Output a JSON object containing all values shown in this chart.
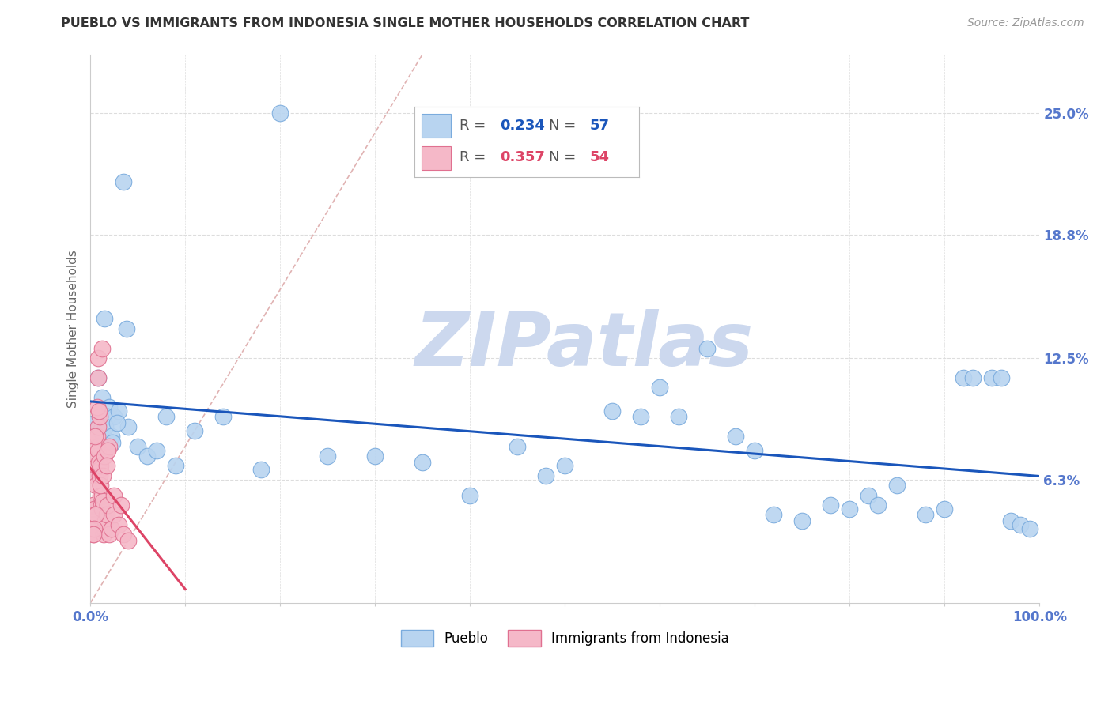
{
  "title": "PUEBLO VS IMMIGRANTS FROM INDONESIA SINGLE MOTHER HOUSEHOLDS CORRELATION CHART",
  "source": "Source: ZipAtlas.com",
  "ylabel": "Single Mother Households",
  "watermark": "ZIPatlas",
  "xlim": [
    0,
    100
  ],
  "ylim": [
    0,
    28
  ],
  "ytick_vals": [
    6.3,
    12.5,
    18.8,
    25.0
  ],
  "ytick_labels": [
    "6.3%",
    "12.5%",
    "18.8%",
    "25.0%"
  ],
  "pueblo_color": "#b8d4f0",
  "pueblo_edge": "#7aabdd",
  "indonesia_color": "#f5b8c8",
  "indonesia_edge": "#e07090",
  "pueblo_line_color": "#1a56bb",
  "indonesia_line_color": "#dd4466",
  "ref_line_color": "#ddaaaa",
  "grid_color": "#dddddd",
  "bg_color": "#ffffff",
  "title_color": "#333333",
  "watermark_color": "#ccd8ee",
  "tick_color": "#5577cc",
  "pueblo_scatter_x": [
    3.5,
    1.5,
    0.8,
    1.2,
    2.0,
    1.8,
    2.5,
    3.0,
    4.0,
    0.5,
    0.9,
    1.1,
    1.4,
    1.6,
    2.2,
    2.8,
    5.0,
    6.0,
    7.0,
    9.0,
    11.0,
    14.0,
    18.0,
    25.0,
    30.0,
    35.0,
    40.0,
    45.0,
    50.0,
    55.0,
    60.0,
    65.0,
    68.0,
    70.0,
    72.0,
    75.0,
    78.0,
    80.0,
    82.0,
    85.0,
    88.0,
    90.0,
    92.0,
    95.0,
    97.0,
    98.0,
    99.0,
    2.3,
    3.8,
    8.0,
    20.0,
    48.0,
    58.0,
    62.0,
    83.0,
    93.0,
    96.0
  ],
  "pueblo_scatter_y": [
    21.5,
    14.5,
    11.5,
    10.5,
    10.0,
    9.5,
    9.5,
    9.8,
    9.0,
    9.2,
    9.0,
    8.8,
    8.5,
    9.0,
    8.5,
    9.2,
    8.0,
    7.5,
    7.8,
    7.0,
    8.8,
    9.5,
    6.8,
    7.5,
    7.5,
    7.2,
    5.5,
    8.0,
    7.0,
    9.8,
    11.0,
    13.0,
    8.5,
    7.8,
    4.5,
    4.2,
    5.0,
    4.8,
    5.5,
    6.0,
    4.5,
    4.8,
    11.5,
    11.5,
    4.2,
    4.0,
    3.8,
    8.2,
    14.0,
    9.5,
    25.0,
    6.5,
    9.5,
    9.5,
    5.0,
    11.5,
    11.5
  ],
  "indonesia_scatter_x": [
    0.1,
    0.15,
    0.2,
    0.25,
    0.3,
    0.35,
    0.4,
    0.45,
    0.5,
    0.55,
    0.6,
    0.65,
    0.7,
    0.75,
    0.8,
    0.85,
    0.9,
    0.95,
    1.0,
    1.05,
    1.1,
    1.15,
    1.2,
    1.25,
    1.3,
    1.4,
    1.5,
    1.6,
    1.7,
    1.8,
    2.0,
    2.2,
    2.5,
    3.0,
    3.5,
    4.0,
    1.0,
    0.8,
    1.2,
    0.5,
    0.7,
    0.9,
    1.5,
    2.0,
    1.8,
    0.6,
    0.4,
    1.1,
    0.3,
    2.5,
    0.8,
    1.3,
    1.7,
    3.2
  ],
  "indonesia_scatter_y": [
    4.5,
    4.2,
    4.0,
    3.8,
    3.5,
    5.0,
    4.8,
    4.5,
    6.5,
    6.0,
    7.0,
    7.5,
    8.0,
    8.5,
    9.0,
    7.8,
    7.2,
    6.8,
    6.5,
    7.0,
    5.5,
    5.0,
    4.8,
    5.5,
    5.2,
    3.5,
    3.8,
    4.2,
    4.5,
    5.0,
    3.5,
    3.8,
    4.5,
    4.0,
    3.5,
    3.2,
    9.5,
    12.5,
    13.0,
    8.5,
    10.0,
    9.8,
    7.5,
    8.0,
    7.8,
    4.5,
    3.8,
    6.0,
    3.5,
    5.5,
    11.5,
    6.5,
    7.0,
    5.0
  ],
  "pueblo_legend_R": "0.234",
  "pueblo_legend_N": "57",
  "indonesia_legend_R": "0.357",
  "indonesia_legend_N": "54",
  "bottom_legend_labels": [
    "Pueblo",
    "Immigrants from Indonesia"
  ]
}
